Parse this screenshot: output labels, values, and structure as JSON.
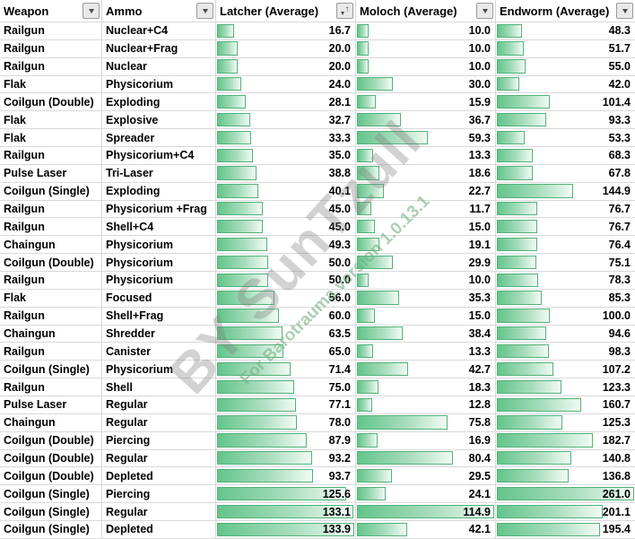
{
  "table": {
    "columns": [
      {
        "label": "Weapon",
        "icon": "filter-dropdown"
      },
      {
        "label": "Ammo",
        "icon": "filter-dropdown"
      },
      {
        "label": "Latcher (Average)",
        "icon": "filter-sorted-ascending"
      },
      {
        "label": "Moloch (Average)",
        "icon": "filter-dropdown"
      },
      {
        "label": "Endworm (Average)",
        "icon": "filter-dropdown"
      }
    ],
    "column_max": {
      "latcher": 133.9,
      "moloch": 114.9,
      "endworm": 261.0
    },
    "rows": [
      {
        "weapon": "Railgun",
        "ammo": "Nuclear+C4",
        "latcher": "16.7",
        "moloch": "10.0",
        "endworm": "48.3"
      },
      {
        "weapon": "Railgun",
        "ammo": "Nuclear+Frag",
        "latcher": "20.0",
        "moloch": "10.0",
        "endworm": "51.7"
      },
      {
        "weapon": "Railgun",
        "ammo": "Nuclear",
        "latcher": "20.0",
        "moloch": "10.0",
        "endworm": "55.0"
      },
      {
        "weapon": "Flak",
        "ammo": "Physicorium",
        "latcher": "24.0",
        "moloch": "30.0",
        "endworm": "42.0"
      },
      {
        "weapon": "Coilgun (Double)",
        "ammo": "Exploding",
        "latcher": "28.1",
        "moloch": "15.9",
        "endworm": "101.4"
      },
      {
        "weapon": "Flak",
        "ammo": "Explosive",
        "latcher": "32.7",
        "moloch": "36.7",
        "endworm": "93.3"
      },
      {
        "weapon": "Flak",
        "ammo": "Spreader",
        "latcher": "33.3",
        "moloch": "59.3",
        "endworm": "53.3"
      },
      {
        "weapon": "Railgun",
        "ammo": "Physicorium+C4",
        "latcher": "35.0",
        "moloch": "13.3",
        "endworm": "68.3"
      },
      {
        "weapon": "Pulse Laser",
        "ammo": "Tri-Laser",
        "latcher": "38.8",
        "moloch": "18.6",
        "endworm": "67.8"
      },
      {
        "weapon": "Coilgun (Single)",
        "ammo": "Exploding",
        "latcher": "40.1",
        "moloch": "22.7",
        "endworm": "144.9"
      },
      {
        "weapon": "Railgun",
        "ammo": "Physicorium +Frag",
        "latcher": "45.0",
        "moloch": "11.7",
        "endworm": "76.7"
      },
      {
        "weapon": "Railgun",
        "ammo": "Shell+C4",
        "latcher": "45.0",
        "moloch": "15.0",
        "endworm": "76.7"
      },
      {
        "weapon": "Chaingun",
        "ammo": "Physicorium",
        "latcher": "49.3",
        "moloch": "19.1",
        "endworm": "76.4"
      },
      {
        "weapon": "Coilgun (Double)",
        "ammo": "Physicorium",
        "latcher": "50.0",
        "moloch": "29.9",
        "endworm": "75.1"
      },
      {
        "weapon": "Railgun",
        "ammo": "Physicorium",
        "latcher": "50.0",
        "moloch": "10.0",
        "endworm": "78.3"
      },
      {
        "weapon": "Flak",
        "ammo": "Focused",
        "latcher": "56.0",
        "moloch": "35.3",
        "endworm": "85.3"
      },
      {
        "weapon": "Railgun",
        "ammo": "Shell+Frag",
        "latcher": "60.0",
        "moloch": "15.0",
        "endworm": "100.0"
      },
      {
        "weapon": "Chaingun",
        "ammo": "Shredder",
        "latcher": "63.5",
        "moloch": "38.4",
        "endworm": "94.6"
      },
      {
        "weapon": "Railgun",
        "ammo": "Canister",
        "latcher": "65.0",
        "moloch": "13.3",
        "endworm": "98.3"
      },
      {
        "weapon": "Coilgun (Single)",
        "ammo": "Physicorium",
        "latcher": "71.4",
        "moloch": "42.7",
        "endworm": "107.2"
      },
      {
        "weapon": "Railgun",
        "ammo": "Shell",
        "latcher": "75.0",
        "moloch": "18.3",
        "endworm": "123.3"
      },
      {
        "weapon": "Pulse Laser",
        "ammo": "Regular",
        "latcher": "77.1",
        "moloch": "12.8",
        "endworm": "160.7"
      },
      {
        "weapon": "Chaingun",
        "ammo": "Regular",
        "latcher": "78.0",
        "moloch": "75.8",
        "endworm": "125.3"
      },
      {
        "weapon": "Coilgun (Double)",
        "ammo": "Piercing",
        "latcher": "87.9",
        "moloch": "16.9",
        "endworm": "182.7"
      },
      {
        "weapon": "Coilgun (Double)",
        "ammo": "Regular",
        "latcher": "93.2",
        "moloch": "80.4",
        "endworm": "140.8"
      },
      {
        "weapon": "Coilgun (Double)",
        "ammo": "Depleted",
        "latcher": "93.7",
        "moloch": "29.5",
        "endworm": "136.8"
      },
      {
        "weapon": "Coilgun (Single)",
        "ammo": "Piercing",
        "latcher": "125.6",
        "moloch": "24.1",
        "endworm": "261.0"
      },
      {
        "weapon": "Coilgun (Single)",
        "ammo": "Regular",
        "latcher": "133.1",
        "moloch": "114.9",
        "endworm": "201.1"
      },
      {
        "weapon": "Coilgun (Single)",
        "ammo": "Depleted",
        "latcher": "133.9",
        "moloch": "42.1",
        "endworm": "195.4"
      }
    ]
  },
  "watermark": {
    "main": "BY SunTzull",
    "sub": "For Barotrauma version 1.0.13.1"
  },
  "colors": {
    "bar_fill_start": "#63c58a",
    "bar_fill_end": "#f1fbf4",
    "bar_border": "#52b279",
    "gridline": "#d9d9d9",
    "watermark_gray": "rgba(125,125,125,0.35)",
    "watermark_green": "rgba(115,175,130,0.6)"
  }
}
